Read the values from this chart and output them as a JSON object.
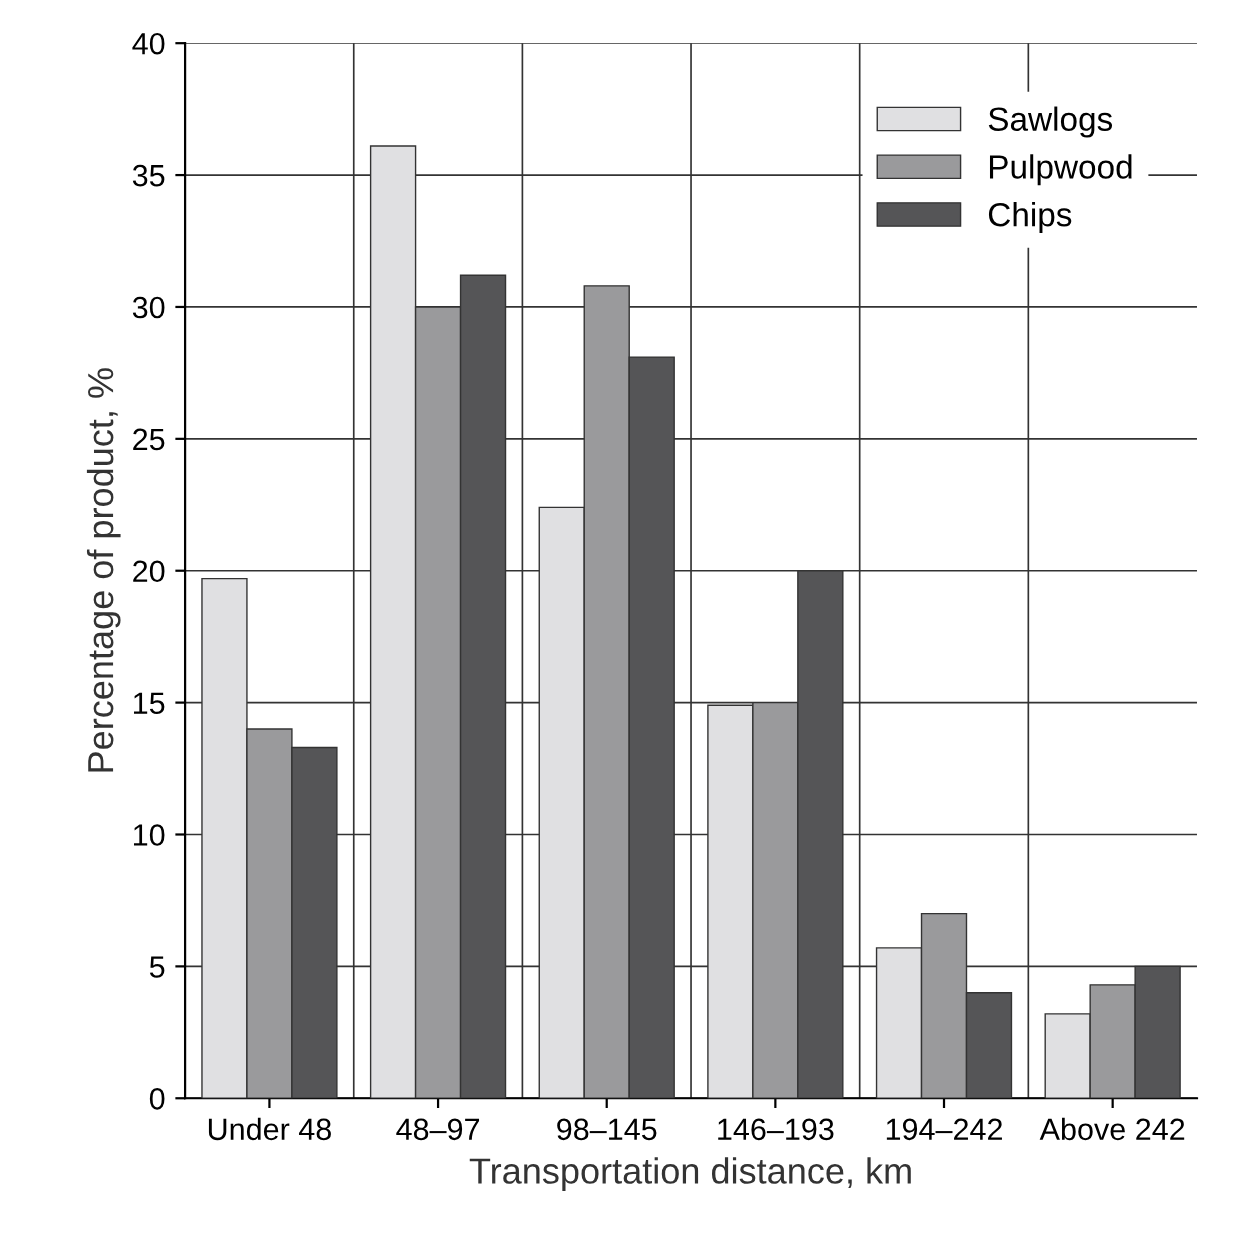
{
  "chart_data": {
    "type": "bar",
    "xlabel": "Transportation distance, km",
    "ylabel": "Percentage of product, %",
    "categories": [
      "Under 48",
      "48–97",
      "98–145",
      "146–193",
      "194–242",
      "Above 242"
    ],
    "series": [
      {
        "name": "Sawlogs",
        "color": "#e0e0e2",
        "values": [
          19.7,
          36.1,
          22.4,
          14.9,
          5.7,
          3.2
        ]
      },
      {
        "name": "Pulpwood",
        "color": "#9a9a9c",
        "values": [
          14.0,
          30.0,
          30.8,
          15.0,
          7.0,
          4.3
        ]
      },
      {
        "name": "Chips",
        "color": "#555557",
        "values": [
          13.3,
          31.2,
          28.1,
          20.0,
          4.0,
          5.0
        ]
      }
    ],
    "ylim": [
      0,
      40
    ],
    "yticks": [
      0,
      5,
      10,
      15,
      20,
      25,
      30,
      35,
      40
    ],
    "grid": true,
    "legend": "top right"
  }
}
